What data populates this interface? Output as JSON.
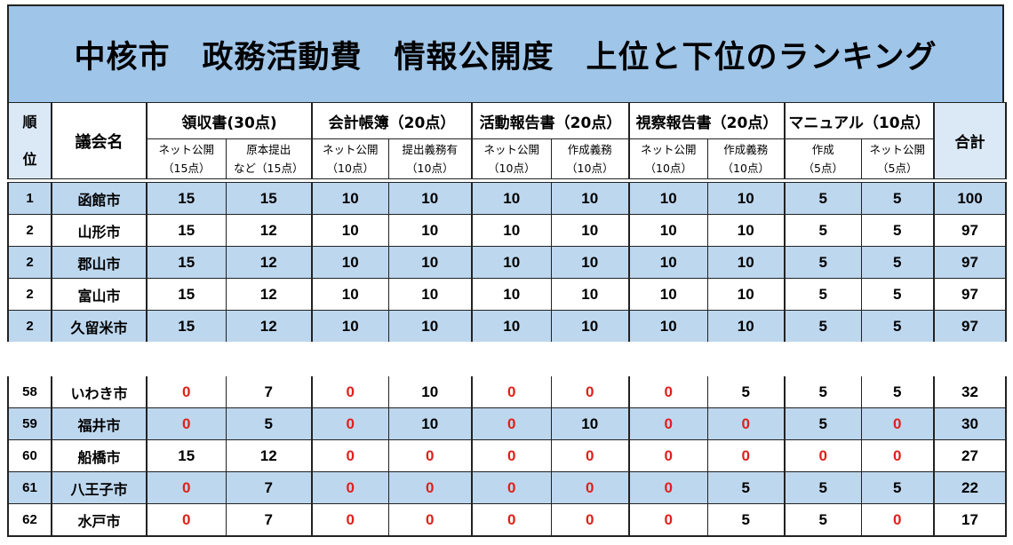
{
  "title": "中核市　政務活動費　情報公開度　上位と下位のランキング",
  "header": {
    "rank_top": "順",
    "rank_bottom": "位",
    "name": "議会名",
    "total": "合計",
    "groups": [
      {
        "label": "領収書(30点)",
        "subs": [
          {
            "line1": "ネット公開",
            "line2": "（15点）"
          },
          {
            "line1": "原本提出",
            "line2": "など（15点）"
          }
        ]
      },
      {
        "label": "会計帳簿（20点）",
        "subs": [
          {
            "line1": "ネット公開",
            "line2": "（10点）"
          },
          {
            "line1": "提出義務有",
            "line2": "（10点）"
          }
        ]
      },
      {
        "label": "活動報告書（20点）",
        "subs": [
          {
            "line1": "ネット公開",
            "line2": "（10点）"
          },
          {
            "line1": "作成義務",
            "line2": "（10点）"
          }
        ]
      },
      {
        "label": "視察報告書（20点）",
        "subs": [
          {
            "line1": "ネット公開",
            "line2": "（10点）"
          },
          {
            "line1": "作成義務",
            "line2": "（10点）"
          }
        ]
      },
      {
        "label": "マニュアル（10点）",
        "subs": [
          {
            "line1": "作成",
            "line2": "（5点）"
          },
          {
            "line1": "ネット公開",
            "line2": "（5点）"
          }
        ]
      }
    ]
  },
  "colors": {
    "title_bg": "#9fc5e8",
    "row_shade": "#bdd7ee",
    "zero_text": "#e0201a"
  },
  "top_rows": [
    {
      "rank": "1",
      "name": "函館市",
      "scores": [
        "15",
        "15",
        "10",
        "10",
        "10",
        "10",
        "10",
        "10",
        "5",
        "5"
      ],
      "total": "100"
    },
    {
      "rank": "2",
      "name": "山形市",
      "scores": [
        "15",
        "12",
        "10",
        "10",
        "10",
        "10",
        "10",
        "10",
        "5",
        "5"
      ],
      "total": "97"
    },
    {
      "rank": "2",
      "name": "郡山市",
      "scores": [
        "15",
        "12",
        "10",
        "10",
        "10",
        "10",
        "10",
        "10",
        "5",
        "5"
      ],
      "total": "97"
    },
    {
      "rank": "2",
      "name": "富山市",
      "scores": [
        "15",
        "12",
        "10",
        "10",
        "10",
        "10",
        "10",
        "10",
        "5",
        "5"
      ],
      "total": "97"
    },
    {
      "rank": "2",
      "name": "久留米市",
      "scores": [
        "15",
        "12",
        "10",
        "10",
        "10",
        "10",
        "10",
        "10",
        "5",
        "5"
      ],
      "total": "97"
    }
  ],
  "bottom_rows": [
    {
      "rank": "58",
      "name": "いわき市",
      "scores": [
        "0",
        "7",
        "0",
        "10",
        "0",
        "0",
        "0",
        "5",
        "5",
        "5"
      ],
      "total": "32"
    },
    {
      "rank": "59",
      "name": "福井市",
      "scores": [
        "0",
        "5",
        "0",
        "10",
        "0",
        "10",
        "0",
        "0",
        "5",
        "0"
      ],
      "total": "30"
    },
    {
      "rank": "60",
      "name": "船橋市",
      "scores": [
        "15",
        "12",
        "0",
        "0",
        "0",
        "0",
        "0",
        "0",
        "0",
        "0"
      ],
      "total": "27"
    },
    {
      "rank": "61",
      "name": "八王子市",
      "scores": [
        "0",
        "7",
        "0",
        "0",
        "0",
        "0",
        "0",
        "5",
        "5",
        "5"
      ],
      "total": "22"
    },
    {
      "rank": "62",
      "name": "水戸市",
      "scores": [
        "0",
        "7",
        "0",
        "0",
        "0",
        "0",
        "0",
        "5",
        "5",
        "0"
      ],
      "total": "17"
    }
  ]
}
